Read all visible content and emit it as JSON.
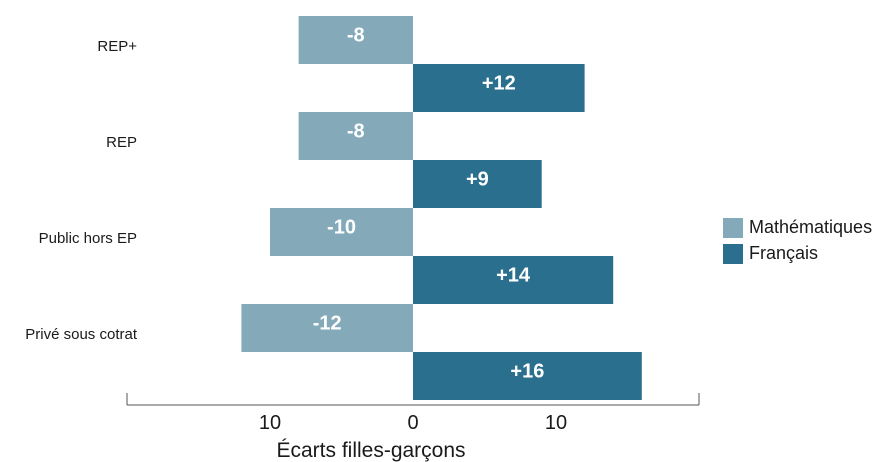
{
  "chart_data": {
    "type": "bar",
    "orientation": "horizontal",
    "categories": [
      "REP+",
      "REP",
      "Public hors EP",
      "Privé sous cotrat"
    ],
    "series": [
      {
        "name": "Mathématiques",
        "values": [
          -8,
          -8,
          -10,
          -12
        ],
        "labels": [
          "-8",
          "-8",
          "-10",
          "-12"
        ],
        "color": "#84a9b8"
      },
      {
        "name": "Français",
        "values": [
          12,
          9,
          14,
          16
        ],
        "labels": [
          "+12",
          "+9",
          "+14",
          "+16"
        ],
        "color": "#2b6f8e"
      }
    ],
    "xlabel": "Écarts filles-garçons",
    "xlim": [
      -20,
      20
    ],
    "x_ticks": [
      -10,
      0,
      10
    ],
    "x_tick_labels": [
      "10",
      "0",
      "10"
    ],
    "legend_position": "right",
    "grid": false
  }
}
